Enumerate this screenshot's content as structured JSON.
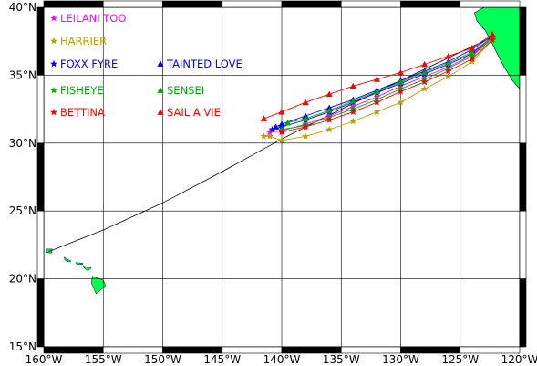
{
  "map": {
    "lon_range": [
      -160,
      -120
    ],
    "lat_range": [
      15,
      40
    ],
    "grid": true,
    "x_ticks": [
      {
        "lon": -160,
        "label": "160°W"
      },
      {
        "lon": -155,
        "label": "155°W"
      },
      {
        "lon": -150,
        "label": "150°W"
      },
      {
        "lon": -145,
        "label": "145°W"
      },
      {
        "lon": -140,
        "label": "140°W"
      },
      {
        "lon": -135,
        "label": "135°W"
      },
      {
        "lon": -130,
        "label": "130°W"
      },
      {
        "lon": -125,
        "label": "125°W"
      },
      {
        "lon": -120,
        "label": "120°W"
      }
    ],
    "y_ticks": [
      {
        "lat": 40,
        "label": "40°N"
      },
      {
        "lat": 35,
        "label": "35°N"
      },
      {
        "lat": 30,
        "label": "30°N"
      },
      {
        "lat": 25,
        "label": "25°N"
      },
      {
        "lat": 20,
        "label": "20°N"
      },
      {
        "lat": 15,
        "label": "15°N"
      }
    ],
    "land_color": "#00ff55",
    "great_circle": [
      [
        -122.3,
        37.8
      ],
      [
        -125,
        36.7
      ],
      [
        -130,
        34.6
      ],
      [
        -135,
        32.5
      ],
      [
        -140,
        30.3
      ],
      [
        -145,
        27.9
      ],
      [
        -150,
        25.6
      ],
      [
        -155,
        23.6
      ],
      [
        -159.6,
        22.0
      ]
    ]
  },
  "chart_data": {
    "type": "scatter",
    "series": [
      {
        "name": "LEILANI TOO",
        "color": "#ff00ff",
        "marker": "star",
        "track": [
          [
            -122.3,
            37.7
          ],
          [
            -124,
            36.5
          ],
          [
            -126,
            35.6
          ],
          [
            -128,
            34.9
          ],
          [
            -130,
            34.2
          ],
          [
            -132,
            33.4
          ],
          [
            -134,
            32.7
          ],
          [
            -136,
            32.0
          ],
          [
            -138,
            31.4
          ],
          [
            -140,
            30.9
          ],
          [
            -141,
            30.8
          ]
        ]
      },
      {
        "name": "HARRIER",
        "color": "#b8a000",
        "marker": "star",
        "track": [
          [
            -122.3,
            37.6
          ],
          [
            -124,
            36.0
          ],
          [
            -126,
            34.9
          ],
          [
            -128,
            34.0
          ],
          [
            -130,
            33.0
          ],
          [
            -132,
            32.3
          ],
          [
            -134,
            31.6
          ],
          [
            -136,
            31.0
          ],
          [
            -138,
            30.5
          ],
          [
            -140,
            30.2
          ],
          [
            -141,
            30.5
          ],
          [
            -141.5,
            30.5
          ]
        ]
      },
      {
        "name": "FOXX FYRE",
        "color": "#0000ff",
        "marker": "star",
        "track": [
          [
            -122.3,
            37.8
          ],
          [
            -124,
            36.6
          ],
          [
            -126,
            35.8
          ],
          [
            -128,
            35.1
          ],
          [
            -130,
            34.4
          ],
          [
            -132,
            33.7
          ],
          [
            -134,
            33.0
          ],
          [
            -136,
            32.3
          ],
          [
            -138,
            31.7
          ],
          [
            -140,
            31.2
          ],
          [
            -140.8,
            31.0
          ]
        ]
      },
      {
        "name": "TAINTED LOVE",
        "color": "#0000ff",
        "marker": "triangle",
        "track": [
          [
            -122.3,
            37.9
          ],
          [
            -124,
            36.9
          ],
          [
            -126,
            36.0
          ],
          [
            -128,
            35.3
          ],
          [
            -130,
            34.6
          ],
          [
            -132,
            33.9
          ],
          [
            -134,
            33.2
          ],
          [
            -136,
            32.6
          ],
          [
            -138,
            32.0
          ],
          [
            -140,
            31.4
          ],
          [
            -140.5,
            31.2
          ]
        ]
      },
      {
        "name": "FISHEYE",
        "color": "#00aa00",
        "marker": "star",
        "track": [
          [
            -122.3,
            37.7
          ],
          [
            -124,
            36.4
          ],
          [
            -126,
            35.5
          ],
          [
            -128,
            34.7
          ],
          [
            -130,
            34.0
          ],
          [
            -132,
            33.2
          ],
          [
            -134,
            32.5
          ],
          [
            -136,
            31.9
          ],
          [
            -138,
            31.3
          ],
          [
            -140,
            31.0
          ]
        ]
      },
      {
        "name": "SENSEI",
        "color": "#00aa00",
        "marker": "triangle",
        "track": [
          [
            -122.3,
            37.8
          ],
          [
            -124,
            36.7
          ],
          [
            -126,
            35.9
          ],
          [
            -128,
            35.2
          ],
          [
            -130,
            34.5
          ],
          [
            -132,
            33.8
          ],
          [
            -134,
            33.1
          ],
          [
            -136,
            32.4
          ],
          [
            -138,
            31.8
          ],
          [
            -139.5,
            31.5
          ]
        ]
      },
      {
        "name": "BETTINA",
        "color": "#ff0000",
        "marker": "star",
        "track": [
          [
            -122.3,
            37.6
          ],
          [
            -124,
            36.2
          ],
          [
            -126,
            35.3
          ],
          [
            -128,
            34.5
          ],
          [
            -130,
            33.8
          ],
          [
            -132,
            33.0
          ],
          [
            -134,
            32.3
          ],
          [
            -136,
            31.7
          ],
          [
            -138,
            31.2
          ],
          [
            -140,
            30.8
          ]
        ]
      },
      {
        "name": "SAIL A VIE",
        "color": "#ff0000",
        "marker": "triangle",
        "track": [
          [
            -122.3,
            38.0
          ],
          [
            -124,
            37.0
          ],
          [
            -126,
            36.4
          ],
          [
            -128,
            35.8
          ],
          [
            -130,
            35.2
          ],
          [
            -132,
            34.7
          ],
          [
            -134,
            34.2
          ],
          [
            -136,
            33.6
          ],
          [
            -138,
            33.0
          ],
          [
            -140,
            32.3
          ],
          [
            -141.5,
            31.8
          ]
        ]
      }
    ]
  }
}
